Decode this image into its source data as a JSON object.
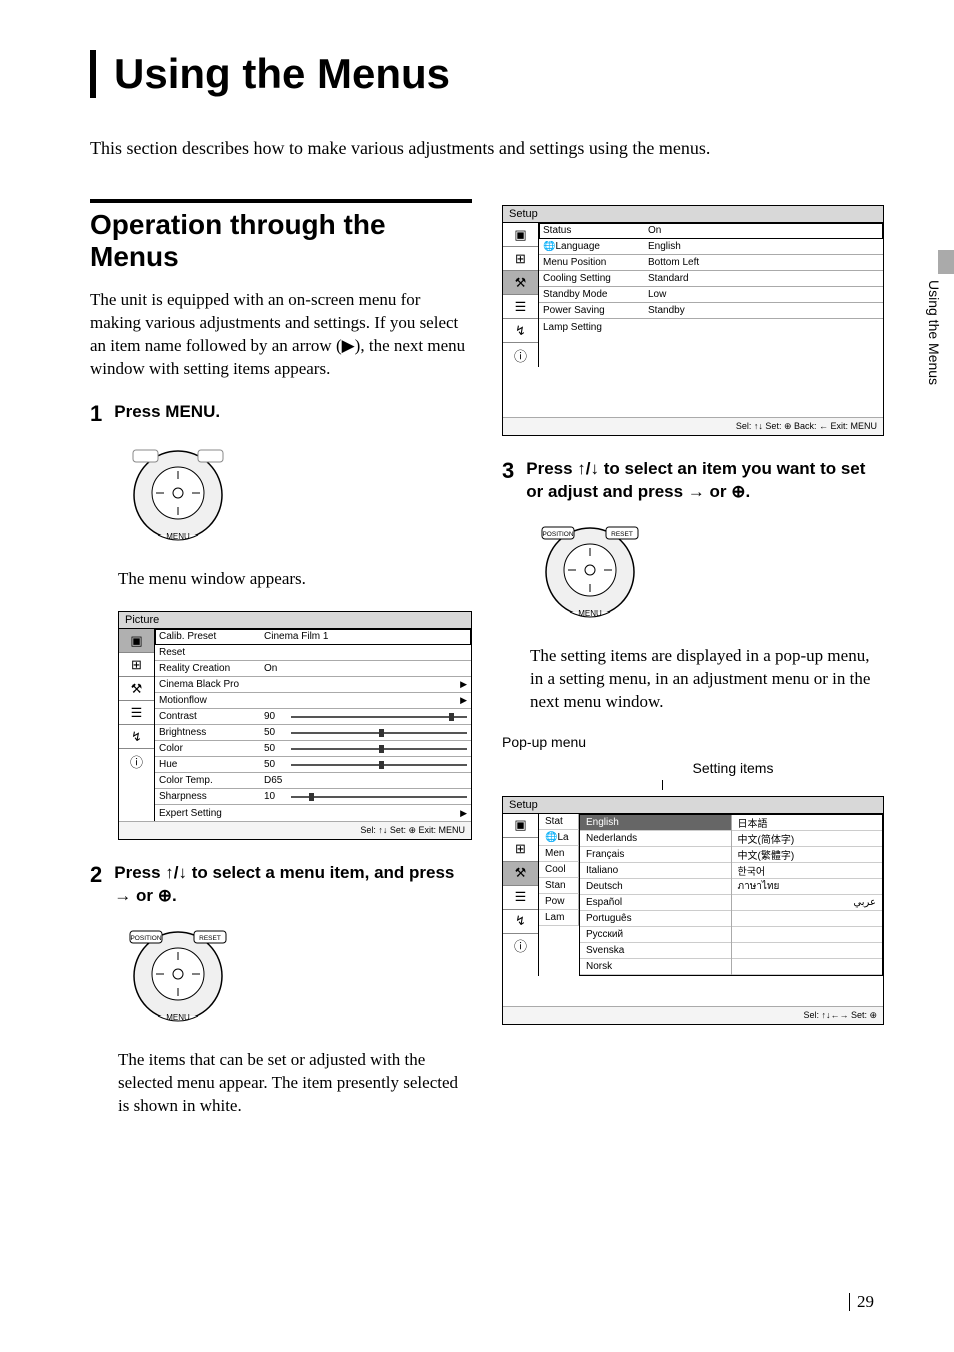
{
  "page_number": "29",
  "side_tab": "Using the Menus",
  "main_title": "Using the Menus",
  "intro": "This section describes how to make various adjustments and settings using the menus.",
  "section_title": "Operation through the Menus",
  "section_intro": "The unit is equipped with an on-screen menu for making various adjustments and settings. If you select an item name followed by an arrow (▶), the next menu window with setting items appears.",
  "steps": {
    "1": {
      "title": "Press MENU.",
      "after": "The menu window appears."
    },
    "2": {
      "title": "Press ↑/↓ to select a menu item, and press → or ⊕.",
      "after": "The items that can be set or adjusted with the selected menu appear. The item presently selected is shown in white."
    },
    "3": {
      "title": "Press ↑/↓ to select an item you want to set or adjust and press → or ⊕.",
      "after": "The setting items are displayed in a pop-up menu, in a setting menu, in an adjustment menu or in the next menu window."
    }
  },
  "popup_label": "Pop-up menu",
  "setting_items_label": "Setting items",
  "osd_sidebar_icons": [
    "▣",
    "⊞",
    "⚒",
    "☰",
    "↯",
    "ⓘ"
  ],
  "osd_picture": {
    "title": "Picture",
    "footer": "Sel: ↑↓   Set: ⊕   Exit: MENU",
    "rows": [
      {
        "label": "Calib. Preset",
        "value": "Cinema Film 1",
        "sel": true
      },
      {
        "label": "Reset",
        "value": ""
      },
      {
        "label": "Reality Creation",
        "value": "On"
      },
      {
        "label": "Cinema Black Pro",
        "value": "",
        "arrow": true
      },
      {
        "label": "Motionflow",
        "value": "",
        "arrow": true
      },
      {
        "label": "Contrast",
        "value": "90",
        "slider": 90
      },
      {
        "label": "Brightness",
        "value": "50",
        "slider": 50
      },
      {
        "label": "Color",
        "value": "50",
        "slider": 50
      },
      {
        "label": "Hue",
        "value": "50",
        "slider": 50
      },
      {
        "label": "Color Temp.",
        "value": "D65"
      },
      {
        "label": "Sharpness",
        "value": "10",
        "slider": 10
      },
      {
        "label": "Expert Setting",
        "value": "",
        "arrow": true
      }
    ]
  },
  "osd_setup": {
    "title": "Setup",
    "footer": "Sel: ↑↓   Set: ⊕   Back: ←   Exit: MENU",
    "rows": [
      {
        "label": "Status",
        "value": "On",
        "sel": true
      },
      {
        "label": "🌐Language",
        "value": "English"
      },
      {
        "label": "Menu Position",
        "value": "Bottom Left"
      },
      {
        "label": "Cooling Setting",
        "value": "Standard"
      },
      {
        "label": "Standby Mode",
        "value": "Low"
      },
      {
        "label": "Power Saving",
        "value": "Standby"
      },
      {
        "label": "Lamp Setting",
        "value": ""
      }
    ]
  },
  "osd_popup": {
    "title": "Setup",
    "footer": "Sel: ↑↓←→   Set: ⊕",
    "left_stubs": [
      "Stat",
      "🌐La",
      "Men",
      "Cool",
      "Stan",
      "Pow",
      "Lam"
    ],
    "col1": [
      "English",
      "Nederlands",
      "Français",
      "Italiano",
      "Deutsch",
      "Español",
      "Português",
      "Русский",
      "Svenska",
      "Norsk"
    ],
    "col2": [
      "日本語",
      "中文(简体字)",
      "中文(繁體字)",
      "한국어",
      "ภาษาไทย",
      "عربي",
      "",
      "",
      "",
      ""
    ]
  },
  "remote_labels": {
    "menu": "MENU",
    "position": "POSITION",
    "reset": "RESET"
  }
}
